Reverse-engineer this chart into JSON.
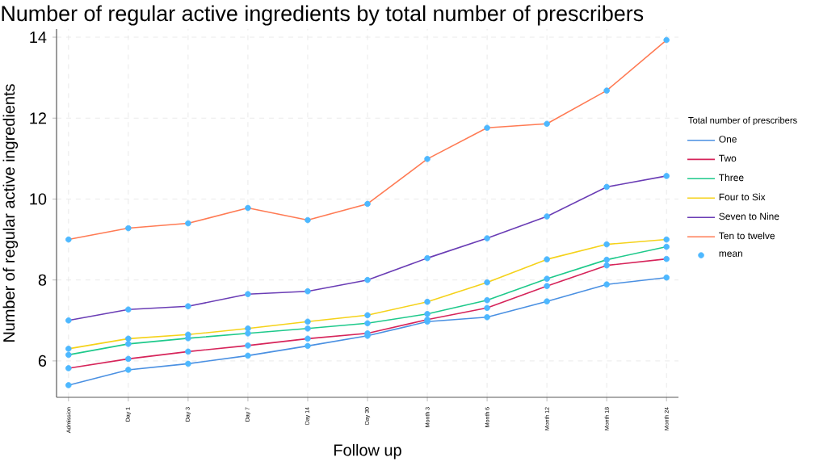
{
  "chart_data": {
    "type": "line",
    "title": "Number of regular active ingredients by total number of prescribers",
    "xlabel": "Follow up",
    "ylabel": "Number of regular active ingredients",
    "legend_title": "Total number of prescribers",
    "categories": [
      "Admission",
      "Day 1",
      "Day 3",
      "Day 7",
      "Day 14",
      "Day 30",
      "Month 3",
      "Month 6",
      "Month 12",
      "Month 18",
      "Month 24"
    ],
    "ylim": [
      5.1,
      14.2
    ],
    "yticks": [
      6,
      8,
      10,
      12,
      14
    ],
    "grid": true,
    "legend": "right",
    "line_style": "solid",
    "series": [
      {
        "name": "One",
        "color": "#4a90e2",
        "values": [
          5.4,
          5.78,
          5.93,
          6.13,
          6.37,
          6.62,
          6.97,
          7.08,
          7.47,
          7.89,
          8.06
        ]
      },
      {
        "name": "Two",
        "color": "#d6245a",
        "values": [
          5.82,
          6.05,
          6.23,
          6.38,
          6.55,
          6.68,
          7.02,
          7.31,
          7.85,
          8.36,
          8.52
        ]
      },
      {
        "name": "Three",
        "color": "#1ec98b",
        "values": [
          6.15,
          6.42,
          6.56,
          6.68,
          6.8,
          6.93,
          7.16,
          7.5,
          8.03,
          8.5,
          8.82
        ]
      },
      {
        "name": "Four to Six",
        "color": "#f5d21a",
        "values": [
          6.3,
          6.55,
          6.65,
          6.8,
          6.97,
          7.13,
          7.46,
          7.94,
          8.51,
          8.88,
          9.0
        ]
      },
      {
        "name": "Seven to Nine",
        "color": "#6a3db5",
        "values": [
          7.0,
          7.27,
          7.35,
          7.65,
          7.72,
          8.0,
          8.54,
          9.03,
          9.57,
          10.3,
          10.57
        ]
      },
      {
        "name": "Ten to twelve",
        "color": "#ff7b54",
        "values": [
          9.0,
          9.28,
          9.4,
          9.78,
          9.48,
          9.88,
          10.99,
          11.76,
          11.86,
          12.68,
          13.93
        ]
      },
      {
        "name": "mean",
        "type": "scatter",
        "color": "#4db8ff",
        "x": [
          "Admission",
          "Day 1",
          "Day 3",
          "Day 7",
          "Day 14",
          "Day 30",
          "Month 3",
          "Month 6",
          "Month 12",
          "Month 18",
          "Month 24",
          "Admission",
          "Day 1",
          "Day 3",
          "Day 7",
          "Day 14",
          "Day 30",
          "Month 3",
          "Month 6",
          "Month 12",
          "Month 18",
          "Month 24",
          "Admission",
          "Day 1",
          "Day 3",
          "Day 7",
          "Day 14",
          "Day 30",
          "Month 3",
          "Month 6",
          "Month 12",
          "Month 18",
          "Month 24",
          "Admission",
          "Day 1",
          "Day 3",
          "Day 7",
          "Day 14",
          "Day 30",
          "Month 3",
          "Month 6",
          "Month 12",
          "Month 18",
          "Month 24",
          "Admission",
          "Day 1",
          "Day 3",
          "Day 7",
          "Day 14",
          "Day 30",
          "Month 3",
          "Month 6",
          "Month 12",
          "Month 18",
          "Month 24",
          "Admission",
          "Day 1",
          "Day 3",
          "Day 7",
          "Day 14",
          "Day 30",
          "Month 3",
          "Month 6",
          "Month 12",
          "Month 18",
          "Month 24"
        ],
        "values": [
          5.4,
          5.78,
          5.93,
          6.13,
          6.37,
          6.62,
          6.97,
          7.08,
          7.47,
          7.89,
          8.06,
          5.82,
          6.05,
          6.23,
          6.38,
          6.55,
          6.68,
          7.02,
          7.31,
          7.85,
          8.36,
          8.52,
          6.15,
          6.42,
          6.56,
          6.68,
          6.8,
          6.93,
          7.16,
          7.5,
          8.03,
          8.5,
          8.82,
          6.3,
          6.55,
          6.65,
          6.8,
          6.97,
          7.13,
          7.46,
          7.94,
          8.51,
          8.88,
          9.0,
          7.0,
          7.27,
          7.35,
          7.65,
          7.72,
          8.0,
          8.54,
          9.03,
          9.57,
          10.3,
          10.57,
          9.0,
          9.28,
          9.4,
          9.78,
          9.48,
          9.88,
          10.99,
          11.76,
          11.86,
          12.68,
          13.93
        ]
      }
    ]
  }
}
